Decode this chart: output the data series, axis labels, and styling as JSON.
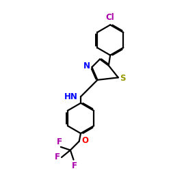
{
  "bg_color": "#ffffff",
  "atom_colors": {
    "C": "#000000",
    "N": "#0000ff",
    "S": "#999900",
    "Cl": "#aa00aa",
    "F": "#aa00aa",
    "O": "#ff0000",
    "H": "#0000ff"
  },
  "bond_color": "#000000",
  "bond_width": 1.6,
  "font_size_atom": 8.5
}
